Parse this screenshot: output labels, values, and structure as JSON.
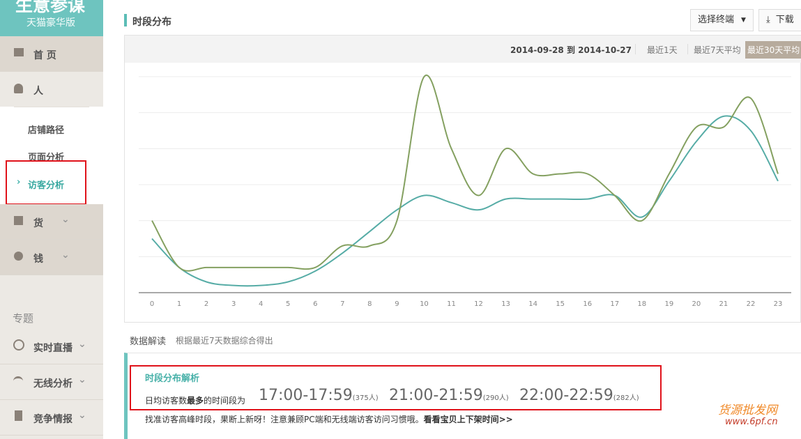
{
  "sidebar": {
    "logo_title": "生意参谋",
    "logo_subtitle": "天猫豪华版",
    "home": "首 页",
    "people": "人",
    "submenu": [
      "店铺路径",
      "页面分析",
      "访客分析"
    ],
    "goods": "货",
    "money": "钱",
    "section": "专题",
    "topics": [
      "实时直播",
      "无线分析",
      "竞争情报"
    ]
  },
  "header": {
    "title": "时段分布",
    "terminal_button": "选择终端",
    "download_button": "下载"
  },
  "date_range": {
    "start": "2014-09-28",
    "to": "到",
    "end": "2014-10-27",
    "options": [
      "最近1天",
      "最近7天平均",
      "最近30天平均"
    ]
  },
  "chart_data": {
    "type": "line",
    "x": [
      0,
      1,
      2,
      3,
      4,
      5,
      6,
      7,
      8,
      9,
      10,
      11,
      12,
      13,
      14,
      15,
      16,
      17,
      18,
      19,
      20,
      21,
      22,
      23
    ],
    "xlim": [
      0,
      23
    ],
    "ylim": [
      0,
      6
    ],
    "yticks": [
      0,
      1,
      2,
      3,
      4,
      5,
      6
    ],
    "grid": true,
    "series": [
      {
        "color": "#56aca6",
        "values": [
          1.5,
          0.7,
          0.3,
          0.2,
          0.2,
          0.3,
          0.6,
          1.1,
          1.7,
          2.3,
          2.7,
          2.5,
          2.3,
          2.6,
          2.6,
          2.6,
          2.6,
          2.7,
          2.1,
          3.1,
          4.2,
          4.9,
          4.5,
          3.1
        ]
      },
      {
        "color": "#84a060",
        "values": [
          2.0,
          0.7,
          0.7,
          0.7,
          0.7,
          0.7,
          0.7,
          1.3,
          1.3,
          2.0,
          6.0,
          4.0,
          2.7,
          4.0,
          3.3,
          3.3,
          3.3,
          2.7,
          2.0,
          3.3,
          4.6,
          4.6,
          5.4,
          3.3
        ]
      }
    ]
  },
  "interpretation": {
    "title": "数据解读",
    "note": "根据最近7天数据综合得出",
    "heading": "时段分布解析",
    "lead_before": "日均访客数",
    "lead_bold": "最多",
    "lead_after": "的时间段为",
    "peaks": [
      {
        "time": "17:00-17:59",
        "count": "(375人)"
      },
      {
        "time": "21:00-21:59",
        "count": "(290人)"
      },
      {
        "time": "22:00-22:59",
        "count": "(282人)"
      }
    ],
    "tip": "找准访客高峰时段，果断上新呀！注意兼顾PC端和无线端访客访问习惯哦。",
    "link": "看看宝贝上下架时间>>"
  },
  "watermark": {
    "name": "货源批发网",
    "url": "www.6pf.cn"
  }
}
